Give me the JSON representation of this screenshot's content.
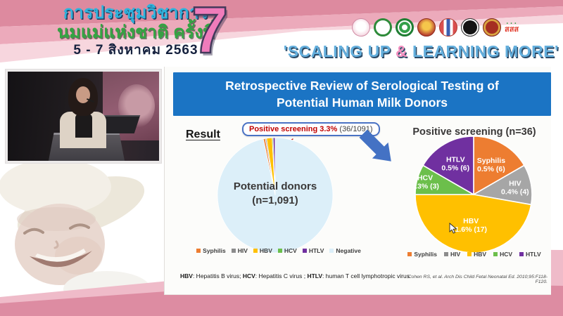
{
  "header": {
    "title_line1": "การประชุมวิชาการ",
    "title_line2": "นมแม่แห่งชาติ ครั้งที่",
    "date_line": "5 - 7 สิงหาคม 2563",
    "edition_number": "7",
    "slogan": {
      "open": "'SCALING UP ",
      "amp": "&",
      "close": " LEARNING MORE'"
    },
    "logos": [
      {
        "name": "mother-and-child-foundation-logo"
      },
      {
        "name": "green-medical-seal-logo"
      },
      {
        "name": "public-health-seal-logo"
      },
      {
        "name": "royal-thai-crest-logo"
      },
      {
        "name": "royal-college-emblem-logo"
      },
      {
        "name": "black-society-emblem-logo"
      },
      {
        "name": "red-crest-emblem-logo"
      },
      {
        "name": "thaihealth-logo",
        "text": "สสส",
        "dots": "• • •"
      }
    ]
  },
  "slide": {
    "title_line1": "Retrospective Review of Serological Testing of",
    "title_line2": "Potential Human Milk Donors",
    "result_label": "Result",
    "callout": {
      "highlight": "Positive screening 3.3%",
      "detail": " (36/1091)"
    },
    "footnote_parts": [
      "HBV",
      ": Hepatitis B virus; ",
      "HCV",
      ": Hepatitis C virus ; ",
      "HTLV",
      ": human T cell lymphotropic virus"
    ],
    "citation": "Cohen RS, et al. Arch Dis Child Fetal Neonatal Ed. 2010;95:F118-F120."
  },
  "chart_data": [
    {
      "type": "pie",
      "title": "Potential donors (n=1,091)",
      "center_label": [
        "Potential donors",
        "(n=1,091)"
      ],
      "total": 1091,
      "start_deg": -11.9,
      "annotation": "Positive screening 3.3% (36/1091)",
      "slices": [
        {
          "name": "Syphilis",
          "value": 6,
          "color": "#ED7D31"
        },
        {
          "name": "HIV",
          "value": 4,
          "color": "#A6A6A6"
        },
        {
          "name": "HBV",
          "value": 17,
          "color": "#FFC000"
        },
        {
          "name": "HCV",
          "value": 3,
          "color": "#6CBF4B"
        },
        {
          "name": "HTLV",
          "value": 6,
          "color": "#7030A0"
        },
        {
          "name": "Negative",
          "value": 1055,
          "color": "#DCEFF9"
        }
      ],
      "legend": [
        {
          "name": "Syphilis",
          "color": "#ED7D31"
        },
        {
          "name": "HIV",
          "color": "#8C8C8C"
        },
        {
          "name": "HBV",
          "color": "#FFC000"
        },
        {
          "name": "HCV",
          "color": "#6CBF4B"
        },
        {
          "name": "HTLV",
          "color": "#7030A0"
        },
        {
          "name": "Negative",
          "color": "#DCEFF9"
        }
      ]
    },
    {
      "type": "pie",
      "title": "Positive screening (n=36)",
      "total": 36,
      "start_deg": 0,
      "slices": [
        {
          "name": "Syphilis",
          "value": 6,
          "pct_label": "0.5% (6)",
          "color": "#ED7D31",
          "label_r": 0.6
        },
        {
          "name": "HIV",
          "value": 4,
          "pct_label": "0.4% (4)",
          "color": "#A6A6A6",
          "label_r": 0.72
        },
        {
          "name": "HBV",
          "value": 17,
          "pct_label": "1.6% (17)",
          "color": "#FFC000",
          "label_r": 0.52
        },
        {
          "name": "HCV",
          "value": 3,
          "pct_label": "0.3% (3)",
          "color": "#6CBF4B",
          "label_r": 0.86
        },
        {
          "name": "HTLV",
          "value": 6,
          "pct_label": "0.5% (6)",
          "color": "#7030A0",
          "label_r": 0.62
        }
      ],
      "legend": [
        {
          "name": "Syphilis",
          "color": "#ED7D31"
        },
        {
          "name": "HIV",
          "color": "#8C8C8C"
        },
        {
          "name": "HBV",
          "color": "#FFC000"
        },
        {
          "name": "HCV",
          "color": "#6CBF4B"
        },
        {
          "name": "HTLV",
          "color": "#7030A0"
        }
      ]
    }
  ],
  "colors": {
    "banner_blue": "#1B74C4",
    "arrow_blue": "#4472C4",
    "highlight_red": "#C00000",
    "header_pink_dark": "#DD8A9F",
    "bottom_pink": "#DD8CA2",
    "seven_pink": "#F07CBB",
    "slogan_blue": "#64AFDD"
  }
}
